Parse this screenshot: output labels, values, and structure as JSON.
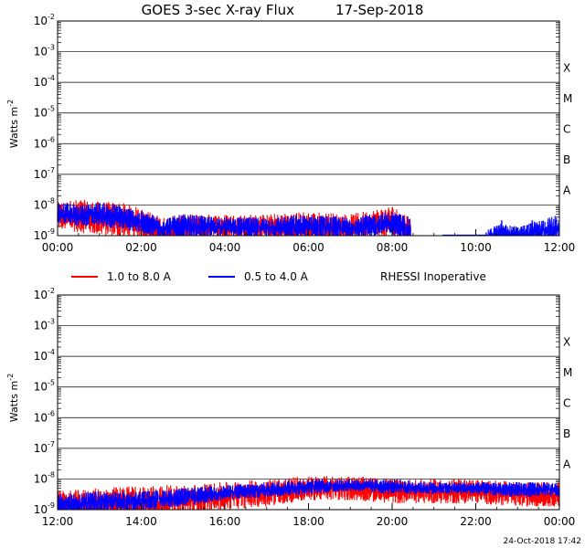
{
  "title": "GOES 3-sec X-ray Flux",
  "date": "17-Sep-2018",
  "timestamp": "24-Oct-2018 17:42",
  "legend": {
    "items": [
      {
        "label": "1.0 to 8.0 A",
        "color": "#ff0000"
      },
      {
        "label": "0.5 to 4.0 A",
        "color": "#0000ff"
      }
    ],
    "note": "RHESSI Inoperative"
  },
  "chart_data": [
    {
      "type": "line",
      "panel": "top",
      "title": "GOES 3-sec X-ray Flux 17-Sep-2018",
      "ylabel": "Watts m-2",
      "yscale": "log",
      "ylim_exp": [
        -9,
        -2
      ],
      "y_ticks": [
        {
          "base": "10",
          "exp": "-2"
        },
        {
          "base": "10",
          "exp": "-3"
        },
        {
          "base": "10",
          "exp": "-4"
        },
        {
          "base": "10",
          "exp": "-5"
        },
        {
          "base": "10",
          "exp": "-6"
        },
        {
          "base": "10",
          "exp": "-7"
        },
        {
          "base": "10",
          "exp": "-8"
        },
        {
          "base": "10",
          "exp": "-9"
        }
      ],
      "x_ticks": [
        "00:00",
        "02:00",
        "04:00",
        "06:00",
        "08:00",
        "10:00",
        "12:00"
      ],
      "xlim_hours": [
        0,
        12
      ],
      "flare_classes": [
        {
          "label": "X",
          "exp": -4
        },
        {
          "label": "M",
          "exp": -5
        },
        {
          "label": "C",
          "exp": -6
        },
        {
          "label": "B",
          "exp": -7
        },
        {
          "label": "A",
          "exp": -8
        }
      ],
      "series": [
        {
          "name": "1.0 to 8.0 A",
          "color": "#ff0000",
          "x_hours": [
            0,
            0.5,
            1,
            1.5,
            2,
            2.5,
            3,
            4,
            5,
            6,
            7,
            8,
            8.45
          ],
          "y_exp_low": [
            -8.8,
            -8.9,
            -9.0,
            -9.1,
            -9.1,
            -9.3,
            -9.2,
            -9.1,
            -9.2,
            -9.2,
            -9.2,
            -9.1,
            -9.2
          ],
          "y_exp_high": [
            -7.9,
            -7.8,
            -7.9,
            -7.9,
            -8.1,
            -8.4,
            -8.3,
            -8.3,
            -8.3,
            -8.2,
            -8.3,
            -8.0,
            -8.4
          ]
        },
        {
          "name": "0.5 to 4.0 A",
          "color": "#0000ff",
          "x_hours": [
            0,
            0.5,
            1,
            1.5,
            2,
            2.5,
            3,
            4,
            5,
            6,
            7,
            8,
            8.45,
            10.3,
            10.6,
            11,
            11.5,
            12
          ],
          "y_exp_low": [
            -8.6,
            -8.7,
            -8.7,
            -8.8,
            -8.9,
            -9.1,
            -9.1,
            -9.0,
            -9.1,
            -9.1,
            -9.1,
            -9.0,
            -9.1,
            -9.2,
            -9.2,
            -9.2,
            -9.2,
            -9.2
          ],
          "y_exp_high": [
            -7.9,
            -8.0,
            -7.9,
            -8.0,
            -8.2,
            -8.4,
            -8.3,
            -8.4,
            -8.4,
            -8.3,
            -8.4,
            -8.2,
            -8.4,
            -8.8,
            -8.6,
            -8.7,
            -8.5,
            -8.3
          ]
        }
      ]
    },
    {
      "type": "line",
      "panel": "bottom",
      "ylabel": "Watts m-2",
      "yscale": "log",
      "ylim_exp": [
        -9,
        -2
      ],
      "y_ticks": [
        {
          "base": "10",
          "exp": "-2"
        },
        {
          "base": "10",
          "exp": "-3"
        },
        {
          "base": "10",
          "exp": "-4"
        },
        {
          "base": "10",
          "exp": "-5"
        },
        {
          "base": "10",
          "exp": "-6"
        },
        {
          "base": "10",
          "exp": "-7"
        },
        {
          "base": "10",
          "exp": "-8"
        },
        {
          "base": "10",
          "exp": "-9"
        }
      ],
      "x_ticks": [
        "12:00",
        "14:00",
        "16:00",
        "18:00",
        "20:00",
        "22:00",
        "00:00"
      ],
      "xlim_hours": [
        12,
        24
      ],
      "flare_classes": [
        {
          "label": "X",
          "exp": -4
        },
        {
          "label": "M",
          "exp": -5
        },
        {
          "label": "C",
          "exp": -6
        },
        {
          "label": "B",
          "exp": -7
        },
        {
          "label": "A",
          "exp": -8
        }
      ],
      "series": [
        {
          "name": "1.0 to 8.0 A",
          "color": "#ff0000",
          "x_hours": [
            12,
            13,
            14,
            15,
            16,
            17,
            18,
            19,
            20,
            21,
            22,
            23,
            24
          ],
          "y_exp_low": [
            -9.3,
            -9.3,
            -9.3,
            -9.2,
            -9.0,
            -8.9,
            -8.7,
            -8.7,
            -8.8,
            -8.8,
            -8.8,
            -8.9,
            -8.9
          ],
          "y_exp_high": [
            -8.4,
            -8.3,
            -8.2,
            -8.2,
            -8.1,
            -8.0,
            -7.9,
            -7.9,
            -8.0,
            -8.0,
            -8.0,
            -8.1,
            -8.1
          ]
        },
        {
          "name": "0.5 to 4.0 A",
          "color": "#0000ff",
          "x_hours": [
            12,
            13,
            14,
            15,
            16,
            17,
            18,
            19,
            20,
            21,
            22,
            23,
            24
          ],
          "y_exp_low": [
            -9.2,
            -9.1,
            -9.0,
            -8.9,
            -8.7,
            -8.6,
            -8.5,
            -8.4,
            -8.5,
            -8.5,
            -8.5,
            -8.6,
            -8.6
          ],
          "y_exp_high": [
            -8.5,
            -8.4,
            -8.4,
            -8.3,
            -8.2,
            -8.1,
            -8.0,
            -8.0,
            -8.0,
            -8.1,
            -8.1,
            -8.1,
            -8.1
          ]
        }
      ]
    }
  ]
}
